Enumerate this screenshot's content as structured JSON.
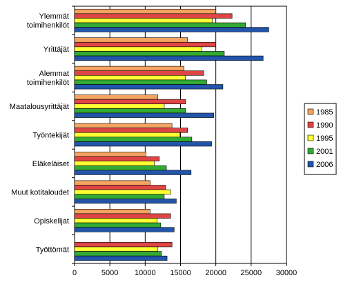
{
  "chart_data": {
    "type": "bar",
    "orientation": "horizontal",
    "categories": [
      [
        "Ylemmät",
        "toimihenkilöt"
      ],
      [
        "Yrittäjät"
      ],
      [
        "Alemmat",
        "toimihenkilöt"
      ],
      [
        "Maatalousyrittäjät"
      ],
      [
        "Työntekijät"
      ],
      [
        "Eläkeläiset"
      ],
      [
        "Muut kotitaloudet"
      ],
      [
        "Opiskelijat"
      ],
      [
        "Työttömät"
      ]
    ],
    "series": [
      {
        "name": "1985",
        "color": "#f4a460",
        "values": [
          20000,
          16000,
          15500,
          11800,
          13800,
          10100,
          10700,
          10700,
          0
        ]
      },
      {
        "name": "1990",
        "color": "#e04545",
        "values": [
          22300,
          20000,
          18300,
          15700,
          16000,
          12000,
          12900,
          13600,
          13800
        ]
      },
      {
        "name": "1995",
        "color": "#ffff33",
        "values": [
          19500,
          18000,
          15700,
          12700,
          14900,
          11300,
          13600,
          11700,
          11800
        ]
      },
      {
        "name": "2001",
        "color": "#33aa33",
        "values": [
          24200,
          21200,
          18700,
          15700,
          16600,
          13000,
          12700,
          12200,
          12300
        ]
      },
      {
        "name": "2006",
        "color": "#2255aa",
        "values": [
          27500,
          26700,
          21000,
          19700,
          19400,
          16500,
          14400,
          14100,
          13100
        ]
      }
    ],
    "xlim": [
      0,
      30000
    ],
    "xticks": [
      "0",
      "5000",
      "10000",
      "15000",
      "20000",
      "25000",
      "30000"
    ],
    "grid": "vertical",
    "legend": "right"
  }
}
